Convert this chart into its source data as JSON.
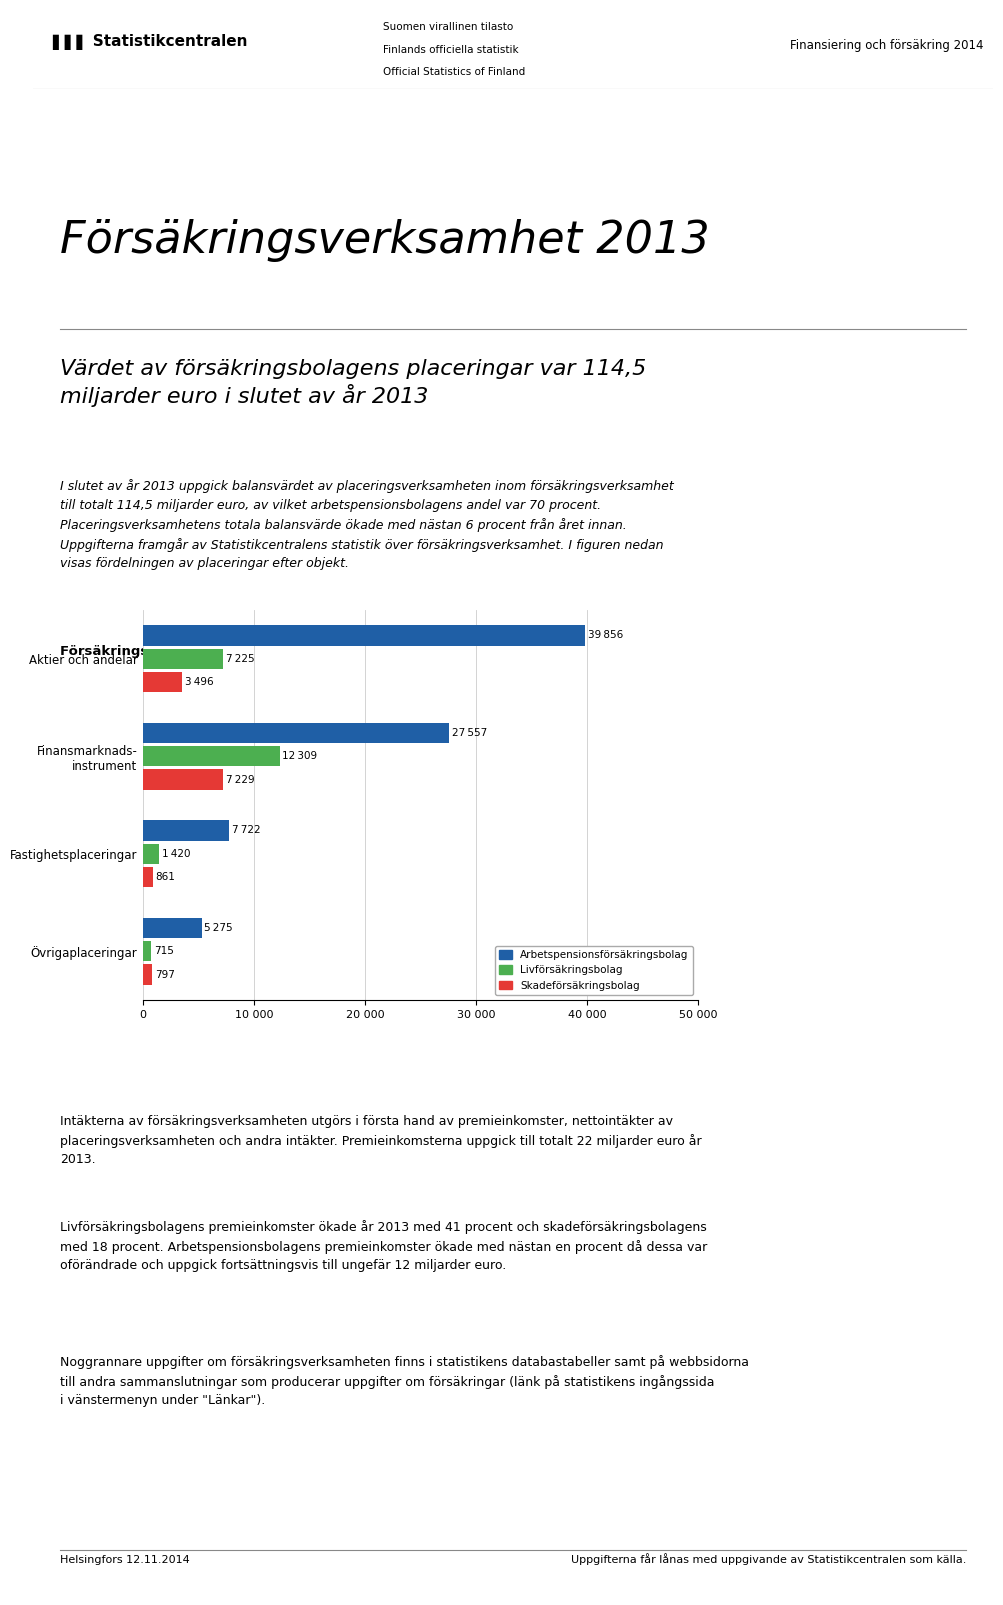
{
  "title_main": "Försäkringsverksamhet 2013",
  "subtitle": "Värdet av försäkringsbolagens placeringar var 114,5\nmiljarder euro i slutet av år 2013",
  "body_text1": "I slutet av år 2013 uppgick balansvärdet av placeringsverksamheten inom försäkringsverksamhet\ntill totalt 114,5 miljarder euro, av vilket arbetspensionsbolagens andel var 70 procent.\nPlaceringsverksamhetens totala balansvärde ökade med nästan 6 procent från året innan.\nUppgifterna framgår av Statistikcentralens statistik över försäkringsverksamhet. I figuren nedan\nvisas fördelningen av placeringar efter objekt.",
  "chart_title": "Försäkringsbolagens placeringar 31.12.2013, Mn. euro",
  "categories": [
    "Aktier och andelar",
    "Finansmarknads-\ninstrument",
    "Fastighetsplaceringar",
    "Övrigaplaceringar"
  ],
  "series": {
    "Arbetspensionsförsäkringsbolag": [
      39856,
      27557,
      7722,
      5275
    ],
    "Livförsäkringsbolag": [
      7225,
      12309,
      1420,
      715
    ],
    "Skadeförsäkringsbolag": [
      3496,
      7229,
      861,
      797
    ]
  },
  "series_colors": {
    "Arbetspensionsförsäkringsbolag": "#1F5FA6",
    "Livförsäkringsbolag": "#4CAF50",
    "Skadeförsäkringsbolag": "#E53935"
  },
  "xlim": [
    0,
    50000
  ],
  "xticks": [
    0,
    10000,
    20000,
    30000,
    40000,
    50000
  ],
  "xtick_labels": [
    "0",
    "10 000",
    "20 000",
    "30 000",
    "40 000",
    "50 000"
  ],
  "body_text2": "Intäkterna av försäkringsverksamheten utgörs i första hand av premieinkomster, nettointäkter av\nplaceringsverksamheten och andra intäkter. Premieinkomsterna uppgick till totalt 22 miljarder euro år\n2013.",
  "body_text3": "Livförsäkringsbolagens premieinkomster ökade år 2013 med 41 procent och skadeförsäkringsbolagens\nmed 18 procent. Arbetspensionsbolagens premieinkomster ökade med nästan en procent då dessa var\noförändrade och uppgick fortsättningsvis till ungefär 12 miljarder euro.",
  "body_text4": "Noggrannare uppgifter om försäkringsverksamheten finns i statistikens databastabeller samt på webbsidorna\ntill andra sammanslutningar som producerar uppgifter om försäkringar (länk på statistikens ingångssida\ni vänstermenyn under \"Länkar\").",
  "header_left1": "Suomen virallinen tilasto",
  "header_left2": "Finlands officiella statistik",
  "header_left3": "Official Statistics of Finland",
  "header_right": "Finansiering och försäkring 2014",
  "footer_left": "Helsingfors 12.11.2014",
  "footer_right": "Uppgifterna får lånas med uppgivande av Statistikcentralen som källa.",
  "logo_text": "Statistikcentralen",
  "background_color": "#FFFFFF"
}
